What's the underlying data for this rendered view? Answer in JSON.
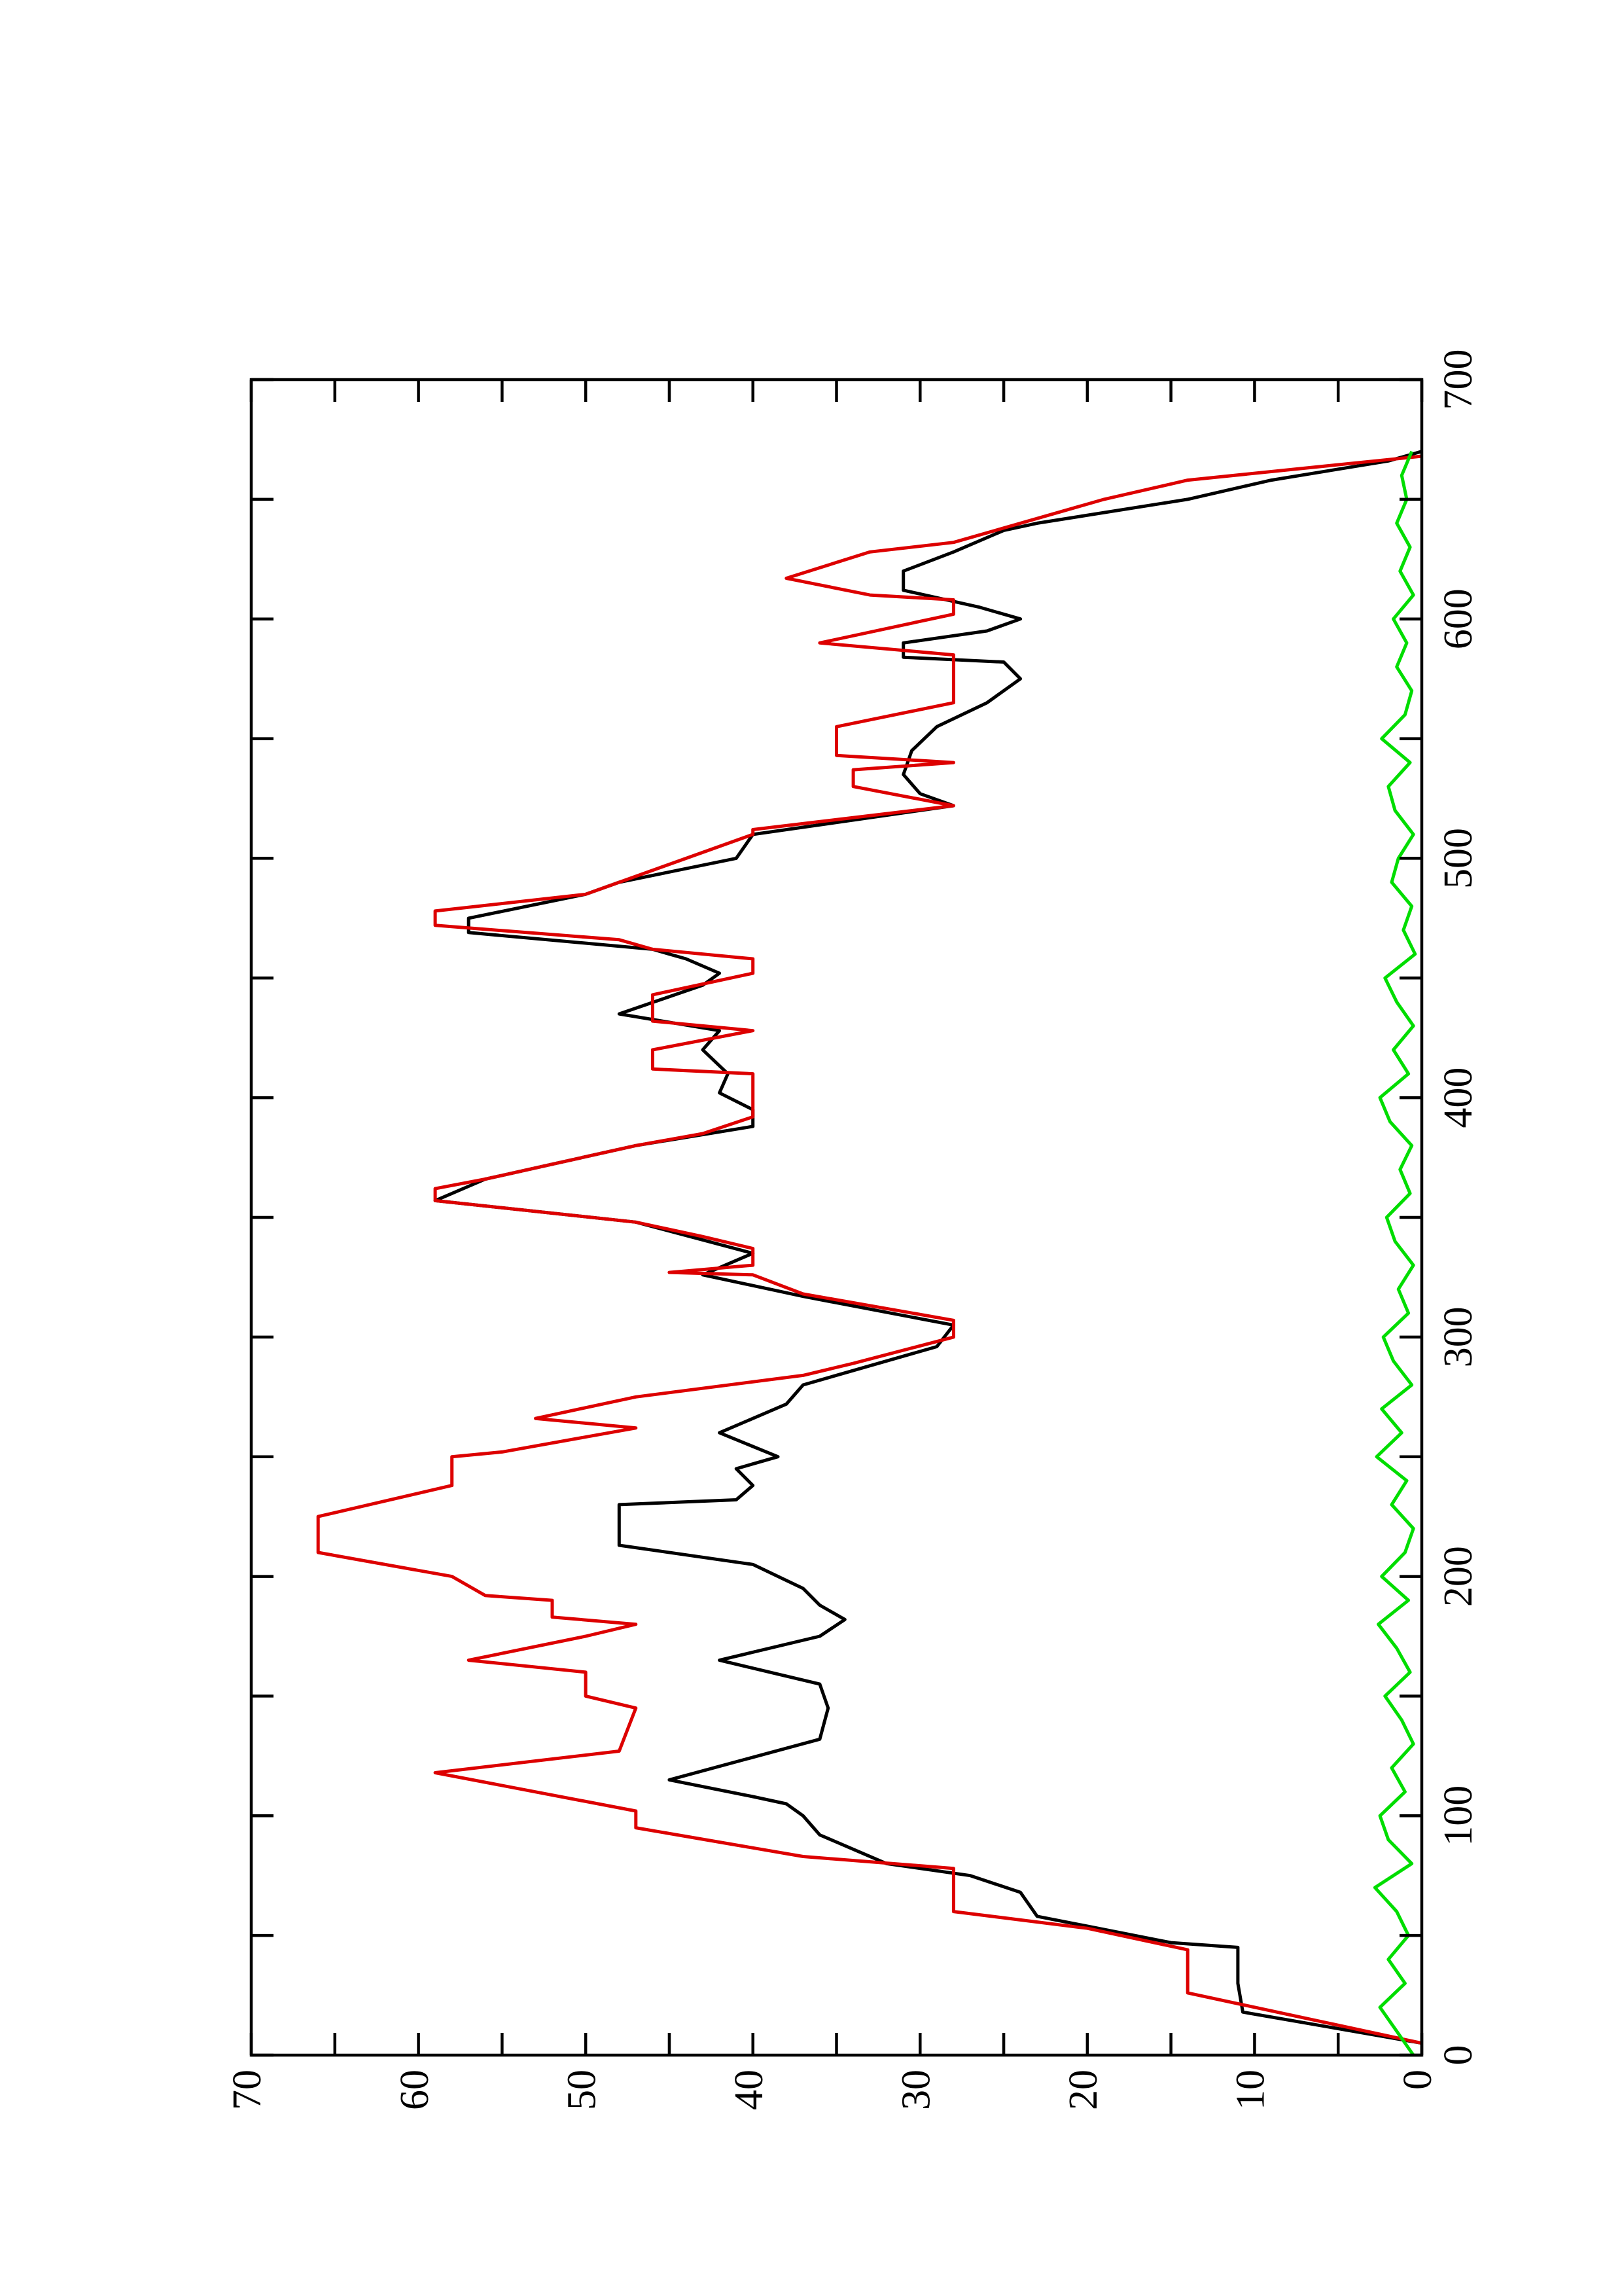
{
  "chart_data": {
    "type": "line",
    "xlim": [
      0,
      700
    ],
    "xticks": [
      0,
      100,
      200,
      300,
      400,
      500,
      600,
      700
    ],
    "x_minor_ticks": [
      50,
      150,
      250,
      350,
      450,
      550,
      650
    ],
    "ylim": [
      0,
      70
    ],
    "yticks": [
      0,
      10,
      20,
      30,
      40,
      50,
      60,
      70
    ],
    "y_minor_ticks": [
      5,
      15,
      25,
      35,
      45,
      55,
      65
    ],
    "series": [
      {
        "color": "#000000",
        "x": [
          5,
          18,
          30,
          45,
          47,
          58,
          68,
          75,
          80,
          92,
          100,
          105,
          108,
          115,
          132,
          145,
          155,
          165,
          175,
          182,
          188,
          195,
          205,
          213,
          230,
          232,
          238,
          245,
          250,
          260,
          272,
          280,
          288,
          296,
          305,
          317,
          326,
          335,
          348,
          357,
          366,
          380,
          388,
          395,
          402,
          410,
          420,
          428,
          435,
          447,
          452,
          458,
          462,
          469,
          475,
          485,
          490,
          500,
          510,
          522,
          527,
          535,
          545,
          555,
          565,
          575,
          582,
          584,
          590,
          595,
          600,
          605,
          612,
          620,
          628,
          637,
          640,
          650,
          658,
          666,
          670
        ],
        "values": [
          0,
          10.7,
          11,
          11,
          15,
          23,
          24,
          27,
          32,
          36,
          37,
          38,
          40,
          45,
          36,
          35.5,
          36,
          42,
          36,
          34.5,
          36,
          37,
          40,
          48,
          48,
          41,
          40,
          41,
          38.5,
          42,
          38,
          37,
          33,
          29,
          28,
          37,
          43,
          40,
          47,
          59,
          56,
          47,
          40,
          40,
          42,
          41.5,
          43,
          42,
          48,
          43,
          42,
          44,
          46,
          57,
          57,
          50,
          48,
          41,
          40,
          28,
          30,
          31,
          30.5,
          29,
          26,
          24,
          25,
          31,
          31,
          26,
          24,
          26.5,
          31,
          31,
          28,
          25,
          23,
          14,
          9,
          2,
          0
        ]
      },
      {
        "color": "#dd0000",
        "x": [
          5,
          26,
          44,
          53,
          60,
          78,
          83,
          95,
          102,
          118,
          127,
          145,
          150,
          160,
          165,
          175,
          180,
          183,
          190,
          192,
          200,
          210,
          225,
          238,
          250,
          252,
          262,
          266,
          275,
          284,
          289,
          300,
          307,
          318,
          326,
          327,
          330,
          337,
          342,
          348,
          357,
          362,
          366,
          380,
          385,
          392,
          410,
          412,
          420,
          428,
          432,
          443,
          452,
          458,
          462,
          466,
          472,
          478,
          485,
          490,
          510,
          512,
          522,
          530,
          537,
          540,
          543,
          555,
          565,
          585,
          590,
          602,
          608,
          610,
          617,
          628,
          632,
          650,
          658,
          668
        ],
        "values": [
          0,
          14,
          14,
          20,
          28,
          28,
          37,
          47,
          47,
          59,
          48,
          47,
          50,
          50,
          57,
          50,
          47,
          52,
          52,
          56,
          58,
          66,
          66,
          58,
          58,
          55,
          47,
          53,
          47,
          37,
          34,
          28,
          28,
          37,
          40,
          45,
          40,
          40,
          43,
          47,
          59,
          59,
          56,
          47,
          43,
          40,
          40,
          46,
          46,
          40,
          46,
          46,
          40,
          40,
          46,
          48,
          59,
          59,
          50,
          48,
          40,
          40,
          28,
          34,
          34,
          28,
          35,
          35,
          28,
          28,
          36,
          28,
          28,
          33,
          38,
          33,
          28,
          19,
          14,
          0
        ]
      },
      {
        "color": "#00dd00",
        "x": [
          0,
          10,
          20,
          30,
          40,
          50,
          60,
          70,
          80,
          90,
          100,
          110,
          120,
          130,
          140,
          150,
          160,
          170,
          180,
          190,
          200,
          210,
          220,
          230,
          240,
          250,
          260,
          270,
          280,
          290,
          300,
          310,
          320,
          330,
          340,
          350,
          360,
          370,
          380,
          390,
          400,
          410,
          420,
          430,
          440,
          450,
          460,
          470,
          480,
          490,
          500,
          510,
          520,
          530,
          540,
          550,
          560,
          570,
          580,
          590,
          600,
          610,
          620,
          630,
          640,
          650,
          660,
          670
        ],
        "values": [
          0.5,
          1.5,
          2.5,
          1,
          2,
          0.8,
          1.5,
          2.8,
          0.6,
          2,
          2.5,
          1,
          1.8,
          0.5,
          1.2,
          2.2,
          0.7,
          1.5,
          2.6,
          0.8,
          2.4,
          1,
          0.5,
          1.8,
          0.9,
          2.7,
          1.2,
          2.4,
          0.6,
          1.7,
          2.3,
          0.8,
          1.4,
          0.5,
          1.6,
          2.1,
          0.7,
          1.3,
          0.6,
          1.9,
          2.5,
          0.8,
          1.7,
          0.5,
          1.5,
          2.2,
          0.4,
          1.1,
          0.6,
          1.8,
          1.4,
          0.5,
          1.6,
          2.0,
          0.7,
          2.4,
          1.0,
          0.6,
          1.5,
          0.9,
          1.7,
          0.5,
          1.3,
          0.7,
          1.5,
          0.9,
          1.2,
          0.6
        ]
      }
    ]
  }
}
